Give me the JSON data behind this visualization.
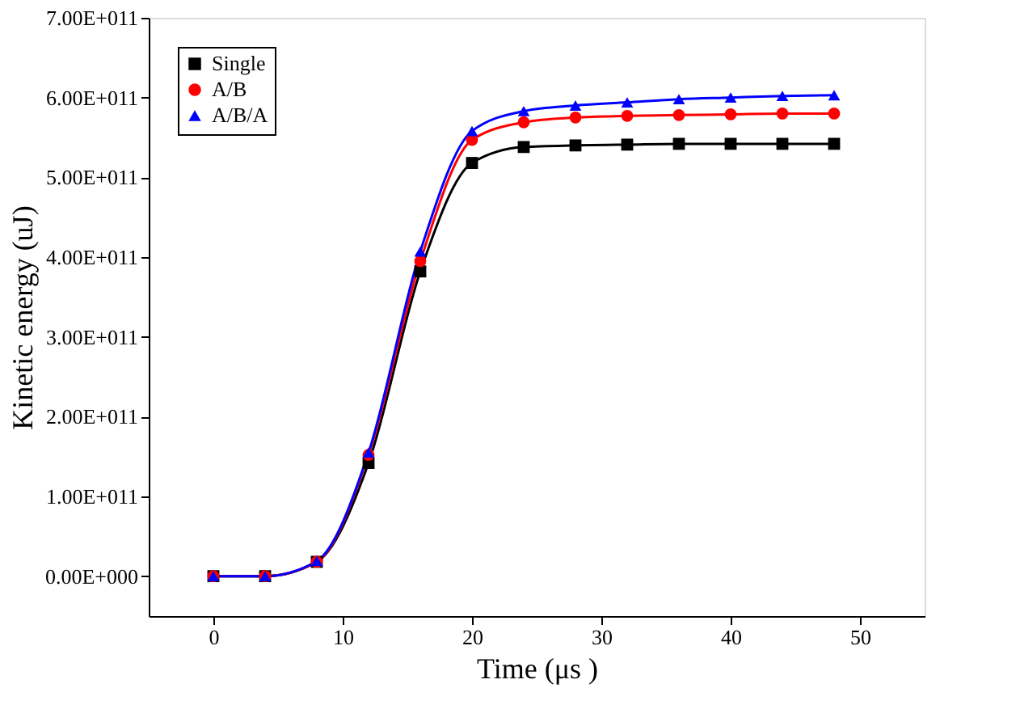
{
  "chart_data": {
    "type": "line",
    "xlabel": "Time (μs )",
    "ylabel": "Kinetic energy (uJ)",
    "x": [
      0,
      4,
      8,
      12,
      16,
      20,
      24,
      28,
      32,
      36,
      40,
      44,
      48
    ],
    "series": [
      {
        "name": "Single",
        "color": "#000000",
        "marker": "square",
        "values": [
          0,
          0,
          18000000000.0,
          142000000000.0,
          382000000000.0,
          518000000000.0,
          538000000000.0,
          540000000000.0,
          541000000000.0,
          542000000000.0,
          542000000000.0,
          542000000000.0,
          542000000000.0
        ]
      },
      {
        "name": "A/B",
        "color": "#ff0000",
        "marker": "circle",
        "values": [
          0,
          0,
          18000000000.0,
          152000000000.0,
          395000000000.0,
          547000000000.0,
          569000000000.0,
          575000000000.0,
          577000000000.0,
          578000000000.0,
          579000000000.0,
          580000000000.0,
          580000000000.0
        ]
      },
      {
        "name": "A/B/A",
        "color": "#0000ff",
        "marker": "triangle",
        "values": [
          0,
          0,
          19000000000.0,
          155000000000.0,
          407000000000.0,
          558000000000.0,
          583000000000.0,
          590000000000.0,
          594000000000.0,
          598000000000.0,
          600000000000.0,
          602000000000.0,
          603000000000.0
        ]
      }
    ],
    "xlim": [
      -5,
      55
    ],
    "xticks": [
      0,
      10,
      20,
      30,
      40,
      50
    ],
    "ylim": [
      -50000000000.0,
      700000000000.0
    ],
    "yticks": [
      {
        "value": 0,
        "label": "0.00E+000"
      },
      {
        "value": 100000000000.0,
        "label": "1.00E+011"
      },
      {
        "value": 200000000000.0,
        "label": "2.00E+011"
      },
      {
        "value": 300000000000.0,
        "label": "3.00E+011"
      },
      {
        "value": 400000000000.0,
        "label": "4.00E+011"
      },
      {
        "value": 500000000000.0,
        "label": "5.00E+011"
      },
      {
        "value": 600000000000.0,
        "label": "6.00E+011"
      },
      {
        "value": 700000000000.0,
        "label": "7.00E+011"
      }
    ],
    "legend": "top left",
    "grid": false,
    "line_style": "solid"
  }
}
